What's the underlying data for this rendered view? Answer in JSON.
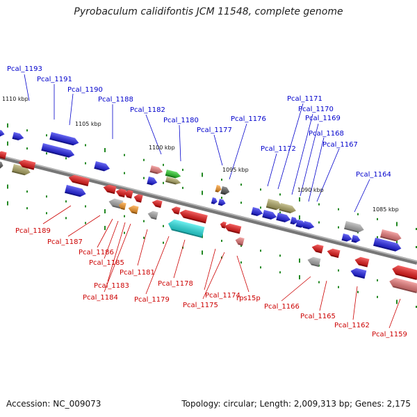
{
  "title": "Pyrobaculum calidifontis JCM 11548, complete genome",
  "accession": "Accession: NC_009073",
  "summary": "Topology: circular; Length: 2,009,313 bp; Genes: 2,175",
  "colors": {
    "top_label": "#0000cc",
    "bottom_label": "#cc0000",
    "blue": "#1a1aee",
    "red": "#ee1111",
    "pink": "#ee7777",
    "gray": "#aaaaaa",
    "olive": "#b0a860",
    "cyan": "#22e8e8",
    "orange": "#ff9922",
    "green": "#22cc22",
    "darkgray": "#555555",
    "tick": "#228822",
    "backbone": "#888888"
  },
  "ticks": [
    "1110 kbp",
    "1105 kbp",
    "1100 kbp",
    "1095 kbp",
    "1090 kbp",
    "1085 kbp"
  ],
  "top_labels": [
    "Pcal_1193",
    "Pcal_1191",
    "Pcal_1190",
    "Pcal_1188",
    "Pcal_1182",
    "Pcal_1180",
    "Pcal_1177",
    "Pcal_1176",
    "Pcal_1172",
    "Pcal_1171",
    "Pcal_1170",
    "Pcal_1169",
    "Pcal_1168",
    "Pcal_1167",
    "Pcal_1164"
  ],
  "bottom_labels": [
    "Pcal_1189",
    "Pcal_1187",
    "Pcal_1186",
    "Pcal_1185",
    "Pcal_1183",
    "Pcal_1184",
    "Pcal_1181",
    "Pcal_1179",
    "Pcal_1178",
    "Pcal_1174",
    "Pcal_1175",
    "rps15p",
    "Pcal_1166",
    "Pcal_1165",
    "Pcal_1162",
    "Pcal_1159"
  ]
}
